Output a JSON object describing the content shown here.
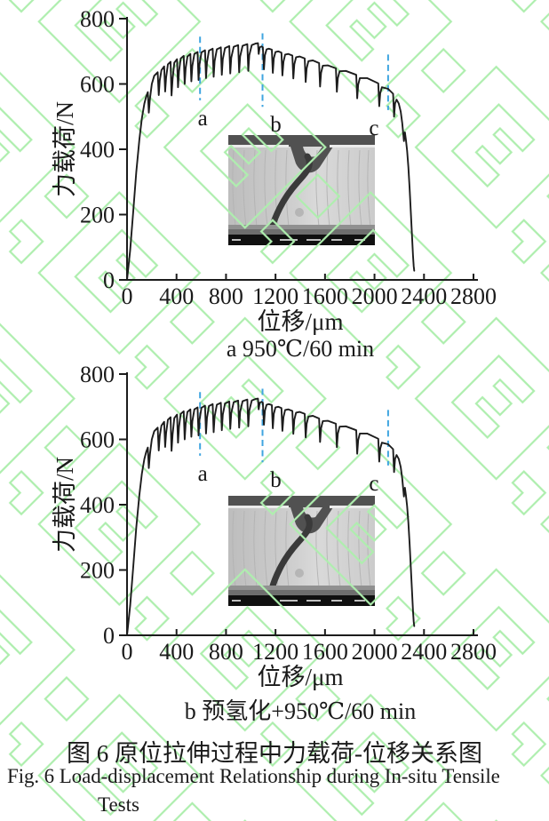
{
  "figure": {
    "caption_zh": "图 6 原位拉伸过程中力载荷-位移关系图",
    "caption_en_line1": "Fig. 6  Load-displacement Relationship during In-situ Tensile",
    "caption_en_line2": "Tests"
  },
  "colors": {
    "curve": "#1c1c1c",
    "axis": "#1c1c1c",
    "text": "#1a1a1a",
    "marker_line": "#3fa5e0",
    "watermark": "#aeeeae"
  },
  "chart_data": {
    "type": "line",
    "xlabel": "位移/μm",
    "ylabel": "力载荷/N",
    "xlim": [
      0,
      2800
    ],
    "ylim": [
      0,
      800
    ],
    "x_ticks": [
      0,
      400,
      800,
      1200,
      1600,
      2000,
      2400,
      2800
    ],
    "y_ticks": [
      0,
      200,
      400,
      600,
      800
    ],
    "grid": false,
    "markers": [
      {
        "label": "a",
        "x": 590,
        "y_bottom": 550,
        "y_top": 745
      },
      {
        "label": "b",
        "x": 1095,
        "y_bottom": 530,
        "y_top": 755
      },
      {
        "label": "c",
        "x": 2110,
        "y_bottom": 520,
        "y_top": 690
      }
    ],
    "curve_points": [
      [
        0,
        0
      ],
      [
        25,
        90
      ],
      [
        50,
        210
      ],
      [
        75,
        330
      ],
      [
        100,
        430
      ],
      [
        120,
        495
      ],
      [
        140,
        540
      ],
      [
        155,
        562
      ],
      [
        168,
        575
      ],
      [
        176,
        512
      ],
      [
        185,
        555
      ],
      [
        200,
        600
      ],
      [
        220,
        625
      ],
      [
        248,
        636
      ],
      [
        256,
        566
      ],
      [
        264,
        610
      ],
      [
        278,
        642
      ],
      [
        300,
        654
      ],
      [
        308,
        577
      ],
      [
        316,
        620
      ],
      [
        330,
        660
      ],
      [
        352,
        668
      ],
      [
        360,
        565
      ],
      [
        368,
        615
      ],
      [
        382,
        665
      ],
      [
        404,
        676
      ],
      [
        412,
        590
      ],
      [
        420,
        638
      ],
      [
        434,
        678
      ],
      [
        458,
        686
      ],
      [
        466,
        600
      ],
      [
        474,
        648
      ],
      [
        488,
        684
      ],
      [
        512,
        692
      ],
      [
        520,
        608
      ],
      [
        528,
        655
      ],
      [
        544,
        692
      ],
      [
        570,
        698
      ],
      [
        578,
        612
      ],
      [
        586,
        660
      ],
      [
        602,
        697
      ],
      [
        630,
        703
      ],
      [
        638,
        618
      ],
      [
        646,
        666
      ],
      [
        662,
        702
      ],
      [
        692,
        708
      ],
      [
        700,
        622
      ],
      [
        708,
        670
      ],
      [
        726,
        706
      ],
      [
        758,
        712
      ],
      [
        766,
        628
      ],
      [
        774,
        676
      ],
      [
        792,
        710
      ],
      [
        826,
        716
      ],
      [
        834,
        632
      ],
      [
        842,
        680
      ],
      [
        862,
        714
      ],
      [
        898,
        719
      ],
      [
        906,
        636
      ],
      [
        914,
        684
      ],
      [
        934,
        717
      ],
      [
        972,
        722
      ],
      [
        980,
        640
      ],
      [
        988,
        688
      ],
      [
        1008,
        719
      ],
      [
        1042,
        724
      ],
      [
        1058,
        725
      ],
      [
        1064,
        692
      ],
      [
        1072,
        712
      ],
      [
        1088,
        715
      ],
      [
        1098,
        712
      ],
      [
        1106,
        645
      ],
      [
        1114,
        688
      ],
      [
        1128,
        706
      ],
      [
        1146,
        708
      ],
      [
        1170,
        705
      ],
      [
        1178,
        634
      ],
      [
        1186,
        678
      ],
      [
        1200,
        698
      ],
      [
        1222,
        700
      ],
      [
        1248,
        696
      ],
      [
        1256,
        626
      ],
      [
        1264,
        668
      ],
      [
        1278,
        690
      ],
      [
        1304,
        692
      ],
      [
        1336,
        687
      ],
      [
        1344,
        617
      ],
      [
        1352,
        660
      ],
      [
        1366,
        682
      ],
      [
        1396,
        684
      ],
      [
        1436,
        678
      ],
      [
        1444,
        606
      ],
      [
        1452,
        648
      ],
      [
        1466,
        670
      ],
      [
        1502,
        672
      ],
      [
        1552,
        664
      ],
      [
        1560,
        592
      ],
      [
        1568,
        634
      ],
      [
        1582,
        656
      ],
      [
        1624,
        657
      ],
      [
        1688,
        648
      ],
      [
        1696,
        576
      ],
      [
        1704,
        618
      ],
      [
        1718,
        639
      ],
      [
        1768,
        640
      ],
      [
        1852,
        628
      ],
      [
        1860,
        556
      ],
      [
        1868,
        598
      ],
      [
        1882,
        618
      ],
      [
        1940,
        618
      ],
      [
        2030,
        602
      ],
      [
        2038,
        532
      ],
      [
        2046,
        572
      ],
      [
        2060,
        590
      ],
      [
        2110,
        585
      ],
      [
        2150,
        570
      ],
      [
        2158,
        500
      ],
      [
        2166,
        540
      ],
      [
        2178,
        552
      ],
      [
        2196,
        540
      ],
      [
        2212,
        515
      ],
      [
        2224,
        480
      ],
      [
        2232,
        448
      ],
      [
        2238,
        425
      ],
      [
        2246,
        452
      ],
      [
        2254,
        430
      ],
      [
        2264,
        395
      ],
      [
        2274,
        345
      ],
      [
        2284,
        280
      ],
      [
        2294,
        205
      ],
      [
        2303,
        135
      ],
      [
        2311,
        75
      ],
      [
        2317,
        42
      ],
      [
        2321,
        28
      ]
    ],
    "charts": [
      {
        "id": "a",
        "subcaption": "a  950℃/60 min",
        "inset": "sem-crack-micrograph"
      },
      {
        "id": "b",
        "subcaption": "b  预氢化+950℃/60 min",
        "inset": "sem-crack-micrograph"
      }
    ]
  }
}
